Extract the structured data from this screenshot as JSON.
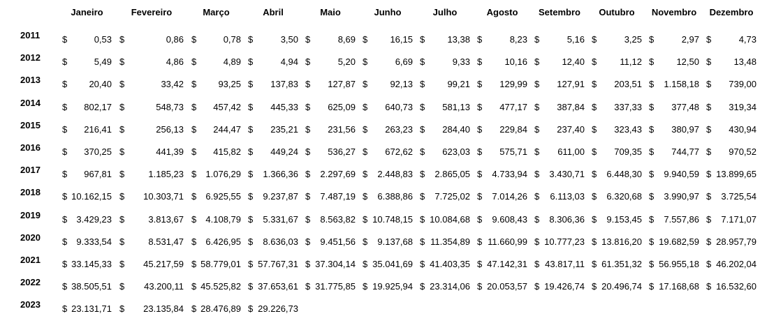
{
  "table": {
    "currency_symbol": "$",
    "months": [
      "Janeiro",
      "Fevereiro",
      "Março",
      "Abril",
      "Maio",
      "Junho",
      "Julho",
      "Agosto",
      "Setembro",
      "Outubro",
      "Novembro",
      "Dezembro"
    ],
    "rows": [
      {
        "year": "2011",
        "values": [
          "0,53",
          "0,86",
          "0,78",
          "3,50",
          "8,69",
          "16,15",
          "13,38",
          "8,23",
          "5,16",
          "3,25",
          "2,97",
          "4,73"
        ]
      },
      {
        "year": "2012",
        "values": [
          "5,49",
          "4,86",
          "4,89",
          "4,94",
          "5,20",
          "6,69",
          "9,33",
          "10,16",
          "12,40",
          "11,12",
          "12,50",
          "13,48"
        ]
      },
      {
        "year": "2013",
        "values": [
          "20,40",
          "33,42",
          "93,25",
          "137,83",
          "127,87",
          "92,13",
          "99,21",
          "129,99",
          "127,91",
          "203,51",
          "1.158,18",
          "739,00"
        ]
      },
      {
        "year": "2014",
        "values": [
          "802,17",
          "548,73",
          "457,42",
          "445,33",
          "625,09",
          "640,73",
          "581,13",
          "477,17",
          "387,84",
          "337,33",
          "377,48",
          "319,34"
        ]
      },
      {
        "year": "2015",
        "values": [
          "216,41",
          "256,13",
          "244,47",
          "235,21",
          "231,56",
          "263,23",
          "284,40",
          "229,84",
          "237,40",
          "323,43",
          "380,97",
          "430,94"
        ]
      },
      {
        "year": "2016",
        "values": [
          "370,25",
          "441,39",
          "415,82",
          "449,24",
          "536,27",
          "672,62",
          "623,03",
          "575,71",
          "611,00",
          "709,35",
          "744,77",
          "970,52"
        ]
      },
      {
        "year": "2017",
        "values": [
          "967,81",
          "1.185,23",
          "1.076,29",
          "1.366,36",
          "2.297,69",
          "2.448,83",
          "2.865,05",
          "4.733,94",
          "3.430,71",
          "6.448,30",
          "9.940,59",
          "13.899,65"
        ]
      },
      {
        "year": "2018",
        "values": [
          "10.162,15",
          "10.303,71",
          "6.925,55",
          "9.237,87",
          "7.487,19",
          "6.388,86",
          "7.725,02",
          "7.014,26",
          "6.113,03",
          "6.320,68",
          "3.990,97",
          "3.725,54"
        ]
      },
      {
        "year": "2019",
        "values": [
          "3.429,23",
          "3.813,67",
          "4.108,79",
          "5.331,67",
          "8.563,82",
          "10.748,15",
          "10.084,68",
          "9.608,43",
          "8.306,36",
          "9.153,45",
          "7.557,86",
          "7.171,07"
        ]
      },
      {
        "year": "2020",
        "values": [
          "9.333,54",
          "8.531,47",
          "6.426,95",
          "8.636,03",
          "9.451,56",
          "9.137,68",
          "11.354,89",
          "11.660,99",
          "10.777,23",
          "13.816,20",
          "19.682,59",
          "28.957,79"
        ]
      },
      {
        "year": "2021",
        "values": [
          "33.145,33",
          "45.217,59",
          "58.779,01",
          "57.767,31",
          "37.304,14",
          "35.041,69",
          "41.403,35",
          "47.142,31",
          "43.817,11",
          "61.351,32",
          "56.955,18",
          "46.202,04"
        ]
      },
      {
        "year": "2022",
        "values": [
          "38.505,51",
          "43.200,11",
          "45.525,82",
          "37.653,61",
          "31.775,85",
          "19.925,94",
          "23.314,06",
          "20.053,57",
          "19.426,74",
          "20.496,74",
          "17.168,68",
          "16.532,60"
        ]
      },
      {
        "year": "2023",
        "values": [
          "23.131,71",
          "23.135,84",
          "28.476,89",
          "29.226,73"
        ]
      }
    ]
  }
}
